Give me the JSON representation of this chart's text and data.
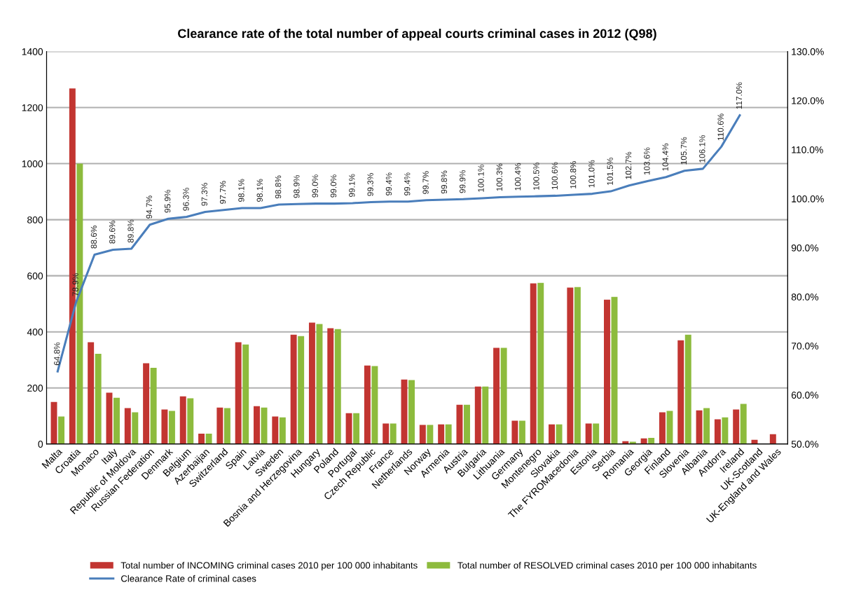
{
  "chart_data": {
    "type": "bar",
    "title": "Clearance rate of the total number of appeal courts criminal cases in 2012 (Q98)",
    "categories": [
      "Malta",
      "Croatia",
      "Monaco",
      "Italy",
      "Republic of Moldova",
      "Russian Federation",
      "Denmark",
      "Belgium",
      "Azerbaijan",
      "Switzerland",
      "Spain",
      "Latvia",
      "Sweden",
      "Bosnia and Herzegovina",
      "Hungary",
      "Poland",
      "Portugal",
      "Czech Republic",
      "France",
      "Netherlands",
      "Norway",
      "Armenia",
      "Austria",
      "Bulgaria",
      "Lithuania",
      "Germany",
      "Montenegro",
      "Slovakia",
      "The FYROMacedonia",
      "Estonia",
      "Serbia",
      "Romania",
      "Georgia",
      "Finland",
      "Slovenia",
      "Albania",
      "Andorra",
      "Ireland",
      "UK-Scotland",
      "UK-England and Wales"
    ],
    "series": [
      {
        "name": "Total number of INCOMING criminal cases 2010 per 100 000 inhabitants",
        "color": "#c23531",
        "values": [
          150,
          1268,
          363,
          183,
          128,
          288,
          123,
          170,
          37,
          130,
          363,
          135,
          98,
          390,
          433,
          413,
          110,
          280,
          73,
          230,
          68,
          70,
          140,
          205,
          343,
          83,
          573,
          70,
          558,
          73,
          515,
          10,
          20,
          113,
          370,
          120,
          88,
          123,
          15,
          35
        ]
      },
      {
        "name": "Total number of RESOLVED criminal cases 2010 per 100 000 inhabitants",
        "color": "#8dbb3d",
        "values": [
          98,
          1000,
          322,
          165,
          113,
          272,
          118,
          163,
          37,
          128,
          355,
          130,
          95,
          385,
          428,
          410,
          110,
          278,
          73,
          228,
          68,
          70,
          140,
          205,
          343,
          83,
          575,
          70,
          560,
          73,
          525,
          8,
          22,
          118,
          390,
          128,
          95,
          143,
          null,
          null
        ]
      },
      {
        "name": "Clearance Rate of criminal cases",
        "color": "#4a7ebb",
        "type": "line",
        "axis": "y2",
        "values": [
          64.8,
          78.9,
          88.6,
          89.6,
          89.8,
          94.7,
          95.9,
          96.3,
          97.3,
          97.7,
          98.1,
          98.1,
          98.8,
          98.9,
          99.0,
          99.0,
          99.1,
          99.3,
          99.4,
          99.4,
          99.7,
          99.8,
          99.9,
          100.1,
          100.3,
          100.4,
          100.5,
          100.6,
          100.8,
          101.0,
          101.5,
          102.7,
          103.6,
          104.4,
          105.7,
          106.1,
          110.6,
          117.0,
          null,
          null
        ],
        "value_labels": [
          "64.8%",
          "78.9%",
          "88.6%",
          "89.6%",
          "89.8%",
          "94.7%",
          "95.9%",
          "96.3%",
          "97.3%",
          "97.7%",
          "98.1%",
          "98.1%",
          "98.8%",
          "98.9%",
          "99.0%",
          "99.0%",
          "99.1%",
          "99.3%",
          "99.4%",
          "99.4%",
          "99.7%",
          "99.8%",
          "99.9%",
          "100.1%",
          "100.3%",
          "100.4%",
          "100.5%",
          "100.6%",
          "100.8%",
          "101.0%",
          "101.5%",
          "102.7%",
          "103.6%",
          "104.4%",
          "105.7%",
          "106.1%",
          "110.6%",
          "117.0%",
          null,
          null
        ]
      }
    ],
    "ylim": [
      0,
      1400
    ],
    "yticks": [
      0,
      200,
      400,
      600,
      800,
      1000,
      1200,
      1400
    ],
    "y2lim": [
      50,
      130
    ],
    "y2ticks": [
      {
        "value": 50,
        "label": "50.0%"
      },
      {
        "value": 60,
        "label": "60.0%"
      },
      {
        "value": 70,
        "label": "70.0%"
      },
      {
        "value": 80,
        "label": "80.0%"
      },
      {
        "value": 90,
        "label": "90.0%"
      },
      {
        "value": 100,
        "label": "100.0%"
      },
      {
        "value": 110,
        "label": "110.0%"
      },
      {
        "value": 120,
        "label": "120.0%"
      },
      {
        "value": 130,
        "label": "130.0%"
      }
    ],
    "grid": "y",
    "legend": "bottom",
    "marker": "none",
    "line_style": "solid"
  }
}
